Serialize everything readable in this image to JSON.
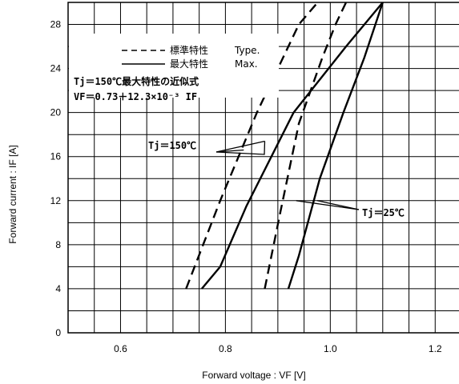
{
  "chart_data": {
    "type": "line",
    "xlabel": "Forward voltage : VF [V]",
    "ylabel": "Forward current : IF [A]",
    "xlim": [
      0.5,
      1.25
    ],
    "ylim": [
      0,
      30
    ],
    "x_ticks": [
      "0.6",
      "0.8",
      "1.0",
      "1.2"
    ],
    "y_ticks": [
      "0",
      "4",
      "8",
      "12",
      "16",
      "20",
      "24",
      "28"
    ],
    "grid": true,
    "legend": {
      "placement": "top-left",
      "entries": [
        {
          "style": "dashed",
          "label_jp": "標準特性",
          "label_en": "Type."
        },
        {
          "style": "solid",
          "label_jp": "最大特性",
          "label_en": "Max."
        }
      ]
    },
    "formula": {
      "line1": "Tj＝150℃最大特性の近似式",
      "line2": "VF＝0.73＋12.3×10⁻³ IF"
    },
    "series": [
      {
        "style": "dashed",
        "tj": "150",
        "points": [
          [
            0.725,
            4
          ],
          [
            0.79,
            12
          ],
          [
            0.86,
            20
          ],
          [
            0.94,
            28
          ],
          [
            0.976,
            30
          ]
        ]
      },
      {
        "style": "solid",
        "tj": "150",
        "points": [
          [
            0.755,
            4
          ],
          [
            0.79,
            6
          ],
          [
            0.84,
            11.5
          ],
          [
            0.93,
            20
          ],
          [
            1.03,
            26
          ],
          [
            1.1,
            30
          ]
        ]
      },
      {
        "style": "dashed",
        "tj": "25",
        "points": [
          [
            0.875,
            4
          ],
          [
            0.905,
            11
          ],
          [
            0.94,
            19
          ],
          [
            0.985,
            25
          ],
          [
            1.01,
            28
          ],
          [
            1.03,
            30
          ]
        ]
      },
      {
        "style": "solid",
        "tj": "25",
        "points": [
          [
            0.92,
            4
          ],
          [
            0.94,
            7
          ],
          [
            0.98,
            14
          ],
          [
            1.025,
            20
          ],
          [
            1.065,
            25
          ],
          [
            1.1,
            30
          ]
        ]
      }
    ],
    "annotations": [
      {
        "text": "Tj＝150℃",
        "points_to": [
          [
            0.875,
            17.4
          ],
          [
            0.835,
            16.6
          ]
        ]
      },
      {
        "text": "Tj＝25℃",
        "points_to": [
          [
            0.975,
            12
          ],
          [
            0.935,
            12
          ]
        ]
      }
    ]
  }
}
